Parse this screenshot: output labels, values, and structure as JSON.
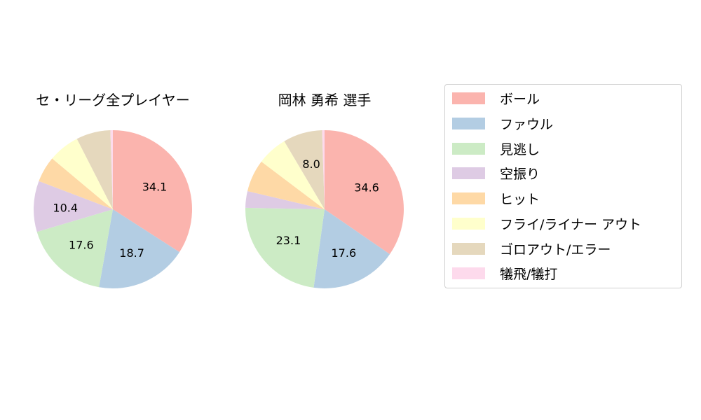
{
  "chart_data": [
    {
      "type": "pie",
      "title": "セ・リーグ全プレイヤー",
      "categories": [
        "ボール",
        "ファウル",
        "見逃し",
        "空振り",
        "ヒット",
        "フライ/ライナー アウト",
        "ゴロアウト/エラー",
        "犠飛/犠打"
      ],
      "values": [
        34.1,
        18.7,
        17.6,
        10.4,
        5.3,
        6.4,
        7.0,
        0.5
      ],
      "labels_shown": [
        "34.1",
        "18.7",
        "17.6",
        "10.4",
        "",
        "",
        "",
        ""
      ],
      "start_angle": 90,
      "direction": "clockwise"
    },
    {
      "type": "pie",
      "title": "岡林 勇希  選手",
      "categories": [
        "ボール",
        "ファウル",
        "見逃し",
        "空振り",
        "ヒット",
        "フライ/ライナー アウト",
        "ゴロアウト/エラー",
        "犠飛/犠打"
      ],
      "values": [
        34.6,
        17.6,
        23.1,
        3.4,
        6.6,
        6.2,
        8.0,
        0.5
      ],
      "labels_shown": [
        "34.6",
        "17.6",
        "23.1",
        "",
        "",
        "",
        "8.0",
        ""
      ],
      "start_angle": 90,
      "direction": "clockwise"
    }
  ],
  "charts": [
    {
      "title": "セ・リーグ全プレイヤー"
    },
    {
      "title": "岡林 勇希  選手"
    }
  ],
  "legend": {
    "items": [
      {
        "label": "ボール",
        "color": "#fbb4ae"
      },
      {
        "label": "ファウル",
        "color": "#b3cde3"
      },
      {
        "label": "見逃し",
        "color": "#ccebc5"
      },
      {
        "label": "空振り",
        "color": "#decbe4"
      },
      {
        "label": "ヒット",
        "color": "#fed9a6"
      },
      {
        "label": "フライ/ライナー アウト",
        "color": "#ffffcc"
      },
      {
        "label": "ゴロアウト/エラー",
        "color": "#e5d8bd"
      },
      {
        "label": "犠飛/犠打",
        "color": "#fddaec"
      }
    ]
  }
}
